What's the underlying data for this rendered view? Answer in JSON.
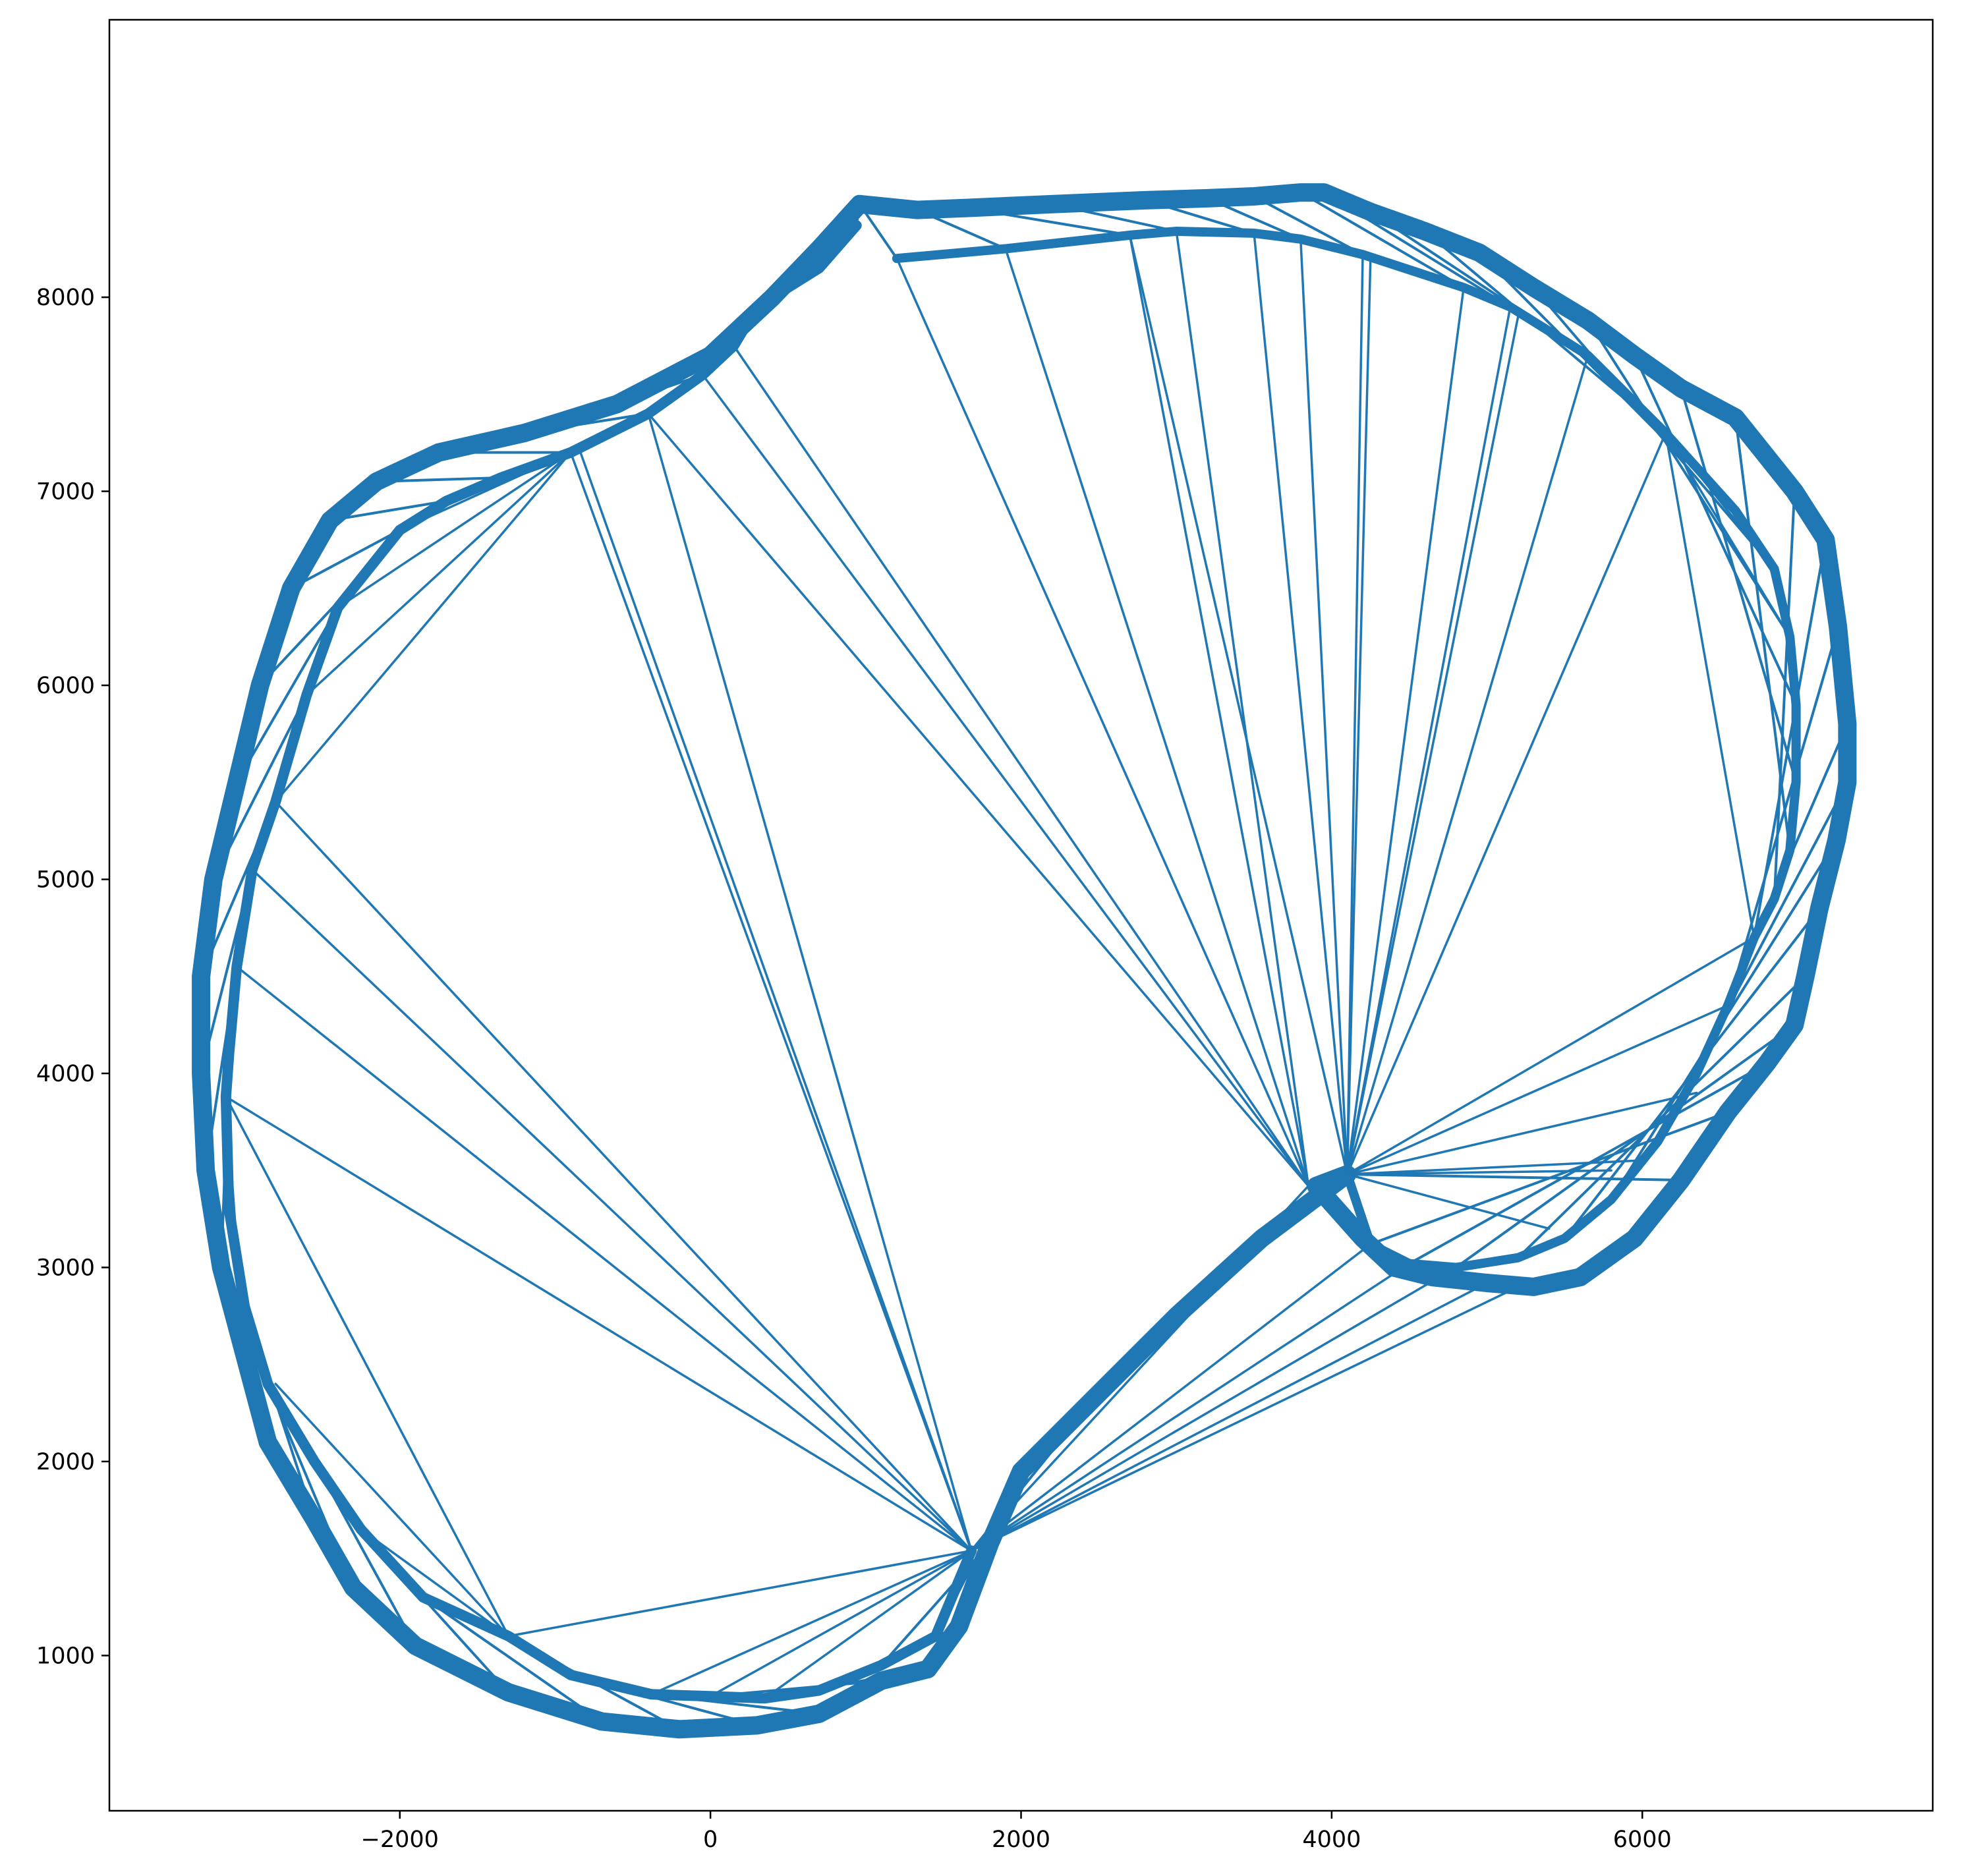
{
  "chart_data": {
    "type": "line",
    "title": "",
    "xlabel": "",
    "ylabel": "",
    "xlim": [
      -3870,
      7870
    ],
    "ylim": [
      200,
      9430
    ],
    "x_ticks": [
      -2000,
      0,
      2000,
      4000,
      6000
    ],
    "y_ticks": [
      1000,
      2000,
      3000,
      4000,
      5000,
      6000,
      7000,
      8000
    ],
    "x_tick_labels": [
      "−2000",
      "0",
      "2000",
      "4000",
      "6000"
    ],
    "y_tick_labels": [
      "1000",
      "2000",
      "3000",
      "4000",
      "5000",
      "6000",
      "7000",
      "8000"
    ],
    "grid": false,
    "line_color": "#1f77b4",
    "series": [
      {
        "values": [
          [
            960,
            8480
          ],
          [
            1330,
            8450
          ],
          [
            1650,
            8460
          ],
          [
            2200,
            8480
          ],
          [
            2800,
            8500
          ],
          [
            3200,
            8510
          ],
          [
            3500,
            8520
          ],
          [
            3800,
            8540
          ],
          [
            3950,
            8540
          ],
          [
            4250,
            8440
          ],
          [
            4600,
            8340
          ],
          [
            4950,
            8230
          ],
          [
            5300,
            8050
          ],
          [
            5650,
            7880
          ],
          [
            5950,
            7700
          ],
          [
            6250,
            7530
          ],
          [
            6600,
            7380
          ],
          [
            6980,
            7000
          ],
          [
            7180,
            6750
          ],
          [
            7260,
            6300
          ],
          [
            7320,
            5800
          ],
          [
            7320,
            5500
          ],
          [
            7250,
            5200
          ],
          [
            7140,
            4850
          ],
          [
            7050,
            4500
          ],
          [
            6980,
            4250
          ],
          [
            6800,
            4050
          ],
          [
            6550,
            3800
          ],
          [
            6250,
            3450
          ],
          [
            5950,
            3150
          ],
          [
            5600,
            2950
          ],
          [
            5300,
            2900
          ],
          [
            5000,
            2920
          ],
          [
            4650,
            2950
          ],
          [
            4400,
            3000
          ],
          [
            4200,
            3150
          ],
          [
            3900,
            3420
          ],
          [
            4100,
            3480
          ],
          [
            3550,
            3150
          ],
          [
            3000,
            2750
          ],
          [
            2500,
            2350
          ],
          [
            2000,
            1950
          ],
          [
            1800,
            1580
          ],
          [
            1600,
            1150
          ],
          [
            1400,
            930
          ],
          [
            1100,
            870
          ],
          [
            700,
            700
          ],
          [
            300,
            640
          ],
          [
            -200,
            620
          ],
          [
            -700,
            660
          ],
          [
            -1300,
            810
          ],
          [
            -1900,
            1050
          ],
          [
            -2300,
            1350
          ],
          [
            -2550,
            1700
          ],
          [
            -2850,
            2100
          ],
          [
            -3000,
            2550
          ],
          [
            -3150,
            3000
          ],
          [
            -3250,
            3500
          ],
          [
            -3280,
            4000
          ],
          [
            -3280,
            4500
          ],
          [
            -3200,
            5000
          ],
          [
            -3050,
            5500
          ],
          [
            -2900,
            6000
          ],
          [
            -2700,
            6500
          ],
          [
            -2450,
            6850
          ],
          [
            -2150,
            7050
          ],
          [
            -1750,
            7200
          ],
          [
            -1200,
            7300
          ],
          [
            -600,
            7450
          ],
          [
            0,
            7700
          ],
          [
            400,
            8000
          ],
          [
            700,
            8250
          ],
          [
            960,
            8480
          ]
        ],
        "outer_hull": [
          [
            960,
            8480
          ],
          [
            1330,
            8450
          ],
          [
            1650,
            8460
          ],
          [
            2200,
            8480
          ],
          [
            2800,
            8500
          ],
          [
            3200,
            8510
          ],
          [
            3500,
            8520
          ],
          [
            3800,
            8540
          ],
          [
            3950,
            8540
          ],
          [
            4250,
            8440
          ],
          [
            4600,
            8340
          ],
          [
            4950,
            8230
          ],
          [
            5300,
            8050
          ],
          [
            5650,
            7880
          ],
          [
            5950,
            7700
          ],
          [
            6250,
            7530
          ],
          [
            6600,
            7380
          ],
          [
            6980,
            7000
          ],
          [
            7180,
            6750
          ],
          [
            7260,
            6300
          ],
          [
            7320,
            5800
          ],
          [
            7320,
            5500
          ],
          [
            7250,
            5200
          ],
          [
            7140,
            4850
          ],
          [
            7050,
            4500
          ],
          [
            6980,
            4250
          ],
          [
            6800,
            4050
          ],
          [
            6550,
            3800
          ],
          [
            6250,
            3450
          ],
          [
            5950,
            3150
          ],
          [
            5600,
            2950
          ],
          [
            5300,
            2900
          ],
          [
            4950,
            2920
          ],
          [
            4600,
            2950
          ],
          [
            4400,
            3000
          ],
          [
            4200,
            3150
          ],
          [
            3900,
            3420
          ]
        ],
        "inner_ring": [
          [
            1200,
            8200
          ],
          [
            1900,
            8250
          ],
          [
            2700,
            8320
          ],
          [
            3000,
            8340
          ],
          [
            3500,
            8330
          ],
          [
            3800,
            8300
          ],
          [
            4200,
            8220
          ],
          [
            4850,
            8050
          ],
          [
            5150,
            7950
          ],
          [
            5650,
            7700
          ],
          [
            6150,
            7300
          ],
          [
            6600,
            6900
          ],
          [
            6850,
            6600
          ],
          [
            6950,
            6250
          ],
          [
            6990,
            5900
          ],
          [
            6990,
            5500
          ],
          [
            6950,
            5150
          ],
          [
            6850,
            4900
          ],
          [
            6720,
            4700
          ],
          [
            6550,
            4350
          ],
          [
            6350,
            4000
          ],
          [
            6100,
            3650
          ],
          [
            5800,
            3350
          ],
          [
            5500,
            3150
          ],
          [
            5200,
            3050
          ],
          [
            4800,
            3000
          ],
          [
            4500,
            3020
          ],
          [
            4250,
            3120
          ],
          [
            4100,
            3480
          ]
        ],
        "left_ring": [
          [
            940,
            8370
          ],
          [
            700,
            8150
          ],
          [
            300,
            7950
          ],
          [
            150,
            7750
          ],
          [
            -50,
            7600
          ],
          [
            -400,
            7400
          ],
          [
            -900,
            7200
          ],
          [
            -1350,
            7070
          ],
          [
            -1700,
            6950
          ],
          [
            -2000,
            6800
          ],
          [
            -2200,
            6600
          ],
          [
            -2400,
            6400
          ],
          [
            -2600,
            5950
          ],
          [
            -2800,
            5400
          ],
          [
            -2950,
            5050
          ],
          [
            -3050,
            4550
          ],
          [
            -3100,
            4100
          ],
          [
            -3120,
            3880
          ],
          [
            -3100,
            3300
          ],
          [
            -3000,
            2800
          ],
          [
            -2850,
            2400
          ],
          [
            -2550,
            2000
          ],
          [
            -2250,
            1650
          ],
          [
            -1850,
            1300
          ],
          [
            -1300,
            1100
          ],
          [
            -900,
            900
          ],
          [
            -380,
            800
          ],
          [
            0,
            790
          ],
          [
            350,
            780
          ],
          [
            700,
            820
          ],
          [
            1100,
            950
          ],
          [
            1450,
            1100
          ],
          [
            1680,
            1540
          ]
        ],
        "fans": [
          {
            "hub": [
              1680,
              1540
            ],
            "targets": [
              [
                -3120,
                3880
              ],
              [
                -3050,
                4550
              ],
              [
                -2950,
                5050
              ],
              [
                -2800,
                5400
              ],
              [
                -900,
                7200
              ],
              [
                -850,
                7230
              ],
              [
                -400,
                7400
              ],
              [
                -1300,
                1100
              ],
              [
                -380,
                800
              ],
              [
                0,
                790
              ],
              [
                350,
                780
              ],
              [
                3850,
                3420
              ],
              [
                4250,
                3120
              ],
              [
                4500,
                3020
              ],
              [
                4800,
                3000
              ],
              [
                5200,
                2900
              ],
              [
                5000,
                2920
              ]
            ]
          },
          {
            "hub": [
              3850,
              3420
            ],
            "targets": [
              [
                -400,
                7400
              ],
              [
                -50,
                7600
              ],
              [
                150,
                7750
              ],
              [
                1200,
                8200
              ],
              [
                1900,
                8250
              ],
              [
                2700,
                8320
              ],
              [
                3000,
                8340
              ],
              [
                4100,
                3480
              ]
            ]
          },
          {
            "hub": [
              4100,
              3480
            ],
            "targets": [
              [
                2700,
                8320
              ],
              [
                3500,
                8330
              ],
              [
                3800,
                8300
              ],
              [
                4200,
                8220
              ],
              [
                4250,
                8200
              ],
              [
                4850,
                8050
              ],
              [
                5150,
                7950
              ],
              [
                5200,
                7900
              ],
              [
                5650,
                7700
              ],
              [
                6150,
                7300
              ],
              [
                6720,
                4700
              ],
              [
                6550,
                4350
              ],
              [
                6350,
                3900
              ],
              [
                5950,
                3550
              ],
              [
                5800,
                3500
              ],
              [
                5400,
                3200
              ]
            ]
          },
          {
            "hub": [
              6150,
              7300
            ],
            "targets": [
              [
                6720,
                4700
              ],
              [
                6950,
                6250
              ],
              [
                6850,
                6600
              ]
            ]
          },
          {
            "hub": [
              -1300,
              1100
            ],
            "targets": [
              [
                -3120,
                3880
              ],
              [
                -2800,
                2400
              ],
              [
                -2250,
                1650
              ]
            ]
          },
          {
            "hub": [
              -900,
              7200
            ],
            "targets": [
              [
                -2800,
                5400
              ],
              [
                -2600,
                5950
              ],
              [
                -2400,
                6400
              ],
              [
                -2000,
                6800
              ]
            ]
          }
        ]
      }
    ]
  }
}
